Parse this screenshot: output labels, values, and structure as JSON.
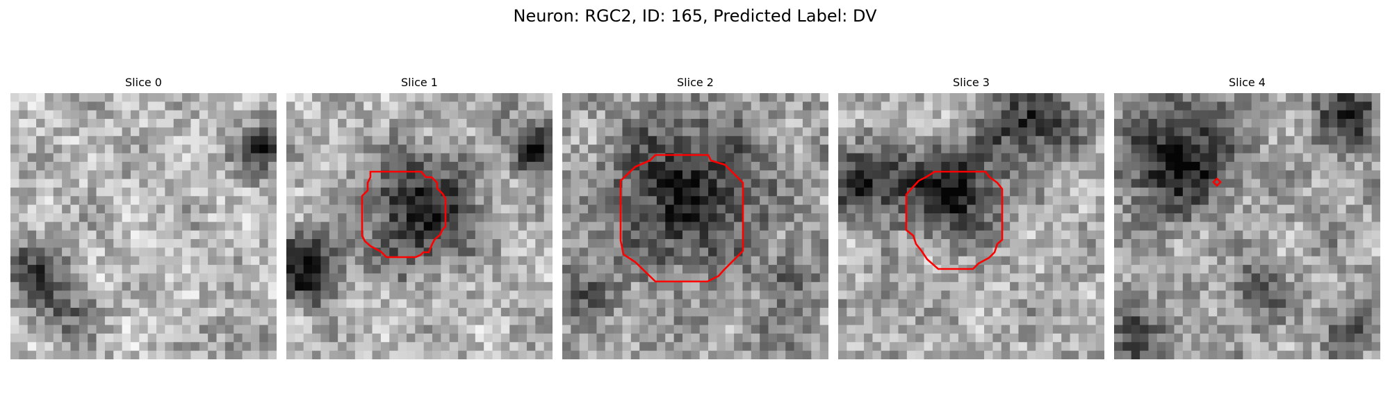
{
  "figure": {
    "title": "Neuron: RGC2, ID: 165, Predicted Label: DV"
  },
  "panels": [
    {
      "title": "Slice 0",
      "has_outline": false
    },
    {
      "title": "Slice 1",
      "has_outline": true
    },
    {
      "title": "Slice 2",
      "has_outline": true
    },
    {
      "title": "Slice 3",
      "has_outline": true
    },
    {
      "title": "Slice 4",
      "has_outline": true
    }
  ],
  "colors": {
    "outline": "#ff0000",
    "background": "#ffffff"
  }
}
